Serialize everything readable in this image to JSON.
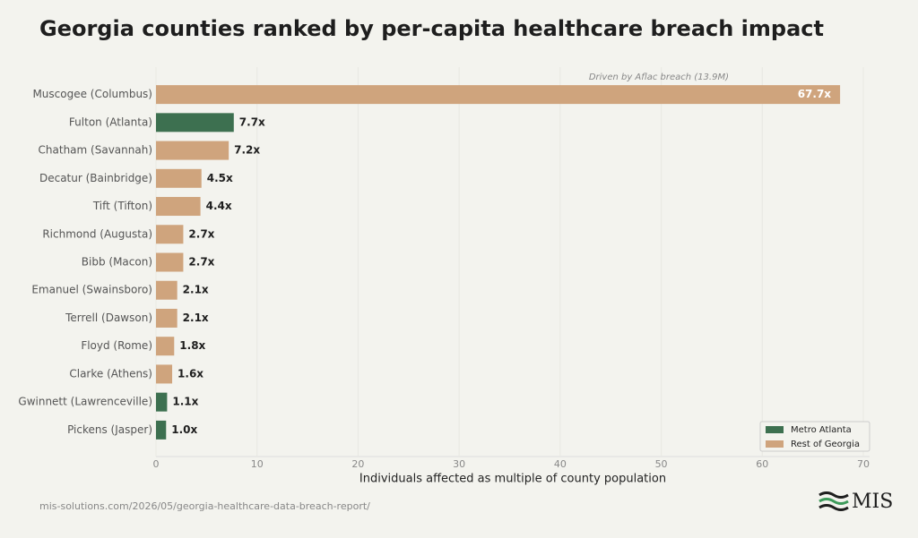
{
  "chart_data": {
    "type": "barh",
    "title": "Georgia counties ranked by per-capita healthcare breach impact",
    "categories": [
      "Muscogee (Columbus)",
      "Fulton (Atlanta)",
      "Chatham (Savannah)",
      "Decatur (Bainbridge)",
      "Tift (Tifton)",
      "Richmond (Augusta)",
      "Bibb (Macon)",
      "Emanuel (Swainsboro)",
      "Terrell (Dawson)",
      "Floyd (Rome)",
      "Clarke (Athens)",
      "Gwinnett (Lawrenceville)",
      "Pickens (Jasper)"
    ],
    "series": [
      {
        "name": "Metro Atlanta",
        "color": "#3d7050",
        "values": [
          null,
          7.7,
          null,
          null,
          null,
          null,
          null,
          null,
          null,
          null,
          null,
          1.1,
          1.0
        ],
        "value_labels": [
          null,
          "7.7x",
          null,
          null,
          null,
          null,
          null,
          null,
          null,
          null,
          null,
          "1.1x",
          "1.0x"
        ]
      },
      {
        "name": "Rest of Georgia",
        "color": "#cfa47d",
        "values": [
          67.7,
          null,
          7.2,
          4.5,
          4.4,
          2.7,
          2.7,
          2.1,
          2.1,
          1.8,
          1.6,
          null,
          null
        ],
        "value_labels": [
          "67.7x",
          null,
          "7.2x",
          "4.5x",
          "4.4x",
          "2.7x",
          "2.7x",
          "2.1x",
          "2.1x",
          "1.8x",
          "1.6x",
          null,
          null
        ]
      }
    ],
    "xlim": [
      0,
      70
    ],
    "xticks": [
      0,
      10,
      20,
      30,
      40,
      50,
      60,
      70
    ],
    "xlabel": "Individuals affected as multiple of county population",
    "annotation": "Driven by Aflac breach (13.9M)",
    "grid": true,
    "legend": "lower right"
  },
  "footer": {
    "url": "mis-solutions.com/2026/05/georgia-healthcare-data-breach-report/",
    "logo": "MIS"
  }
}
